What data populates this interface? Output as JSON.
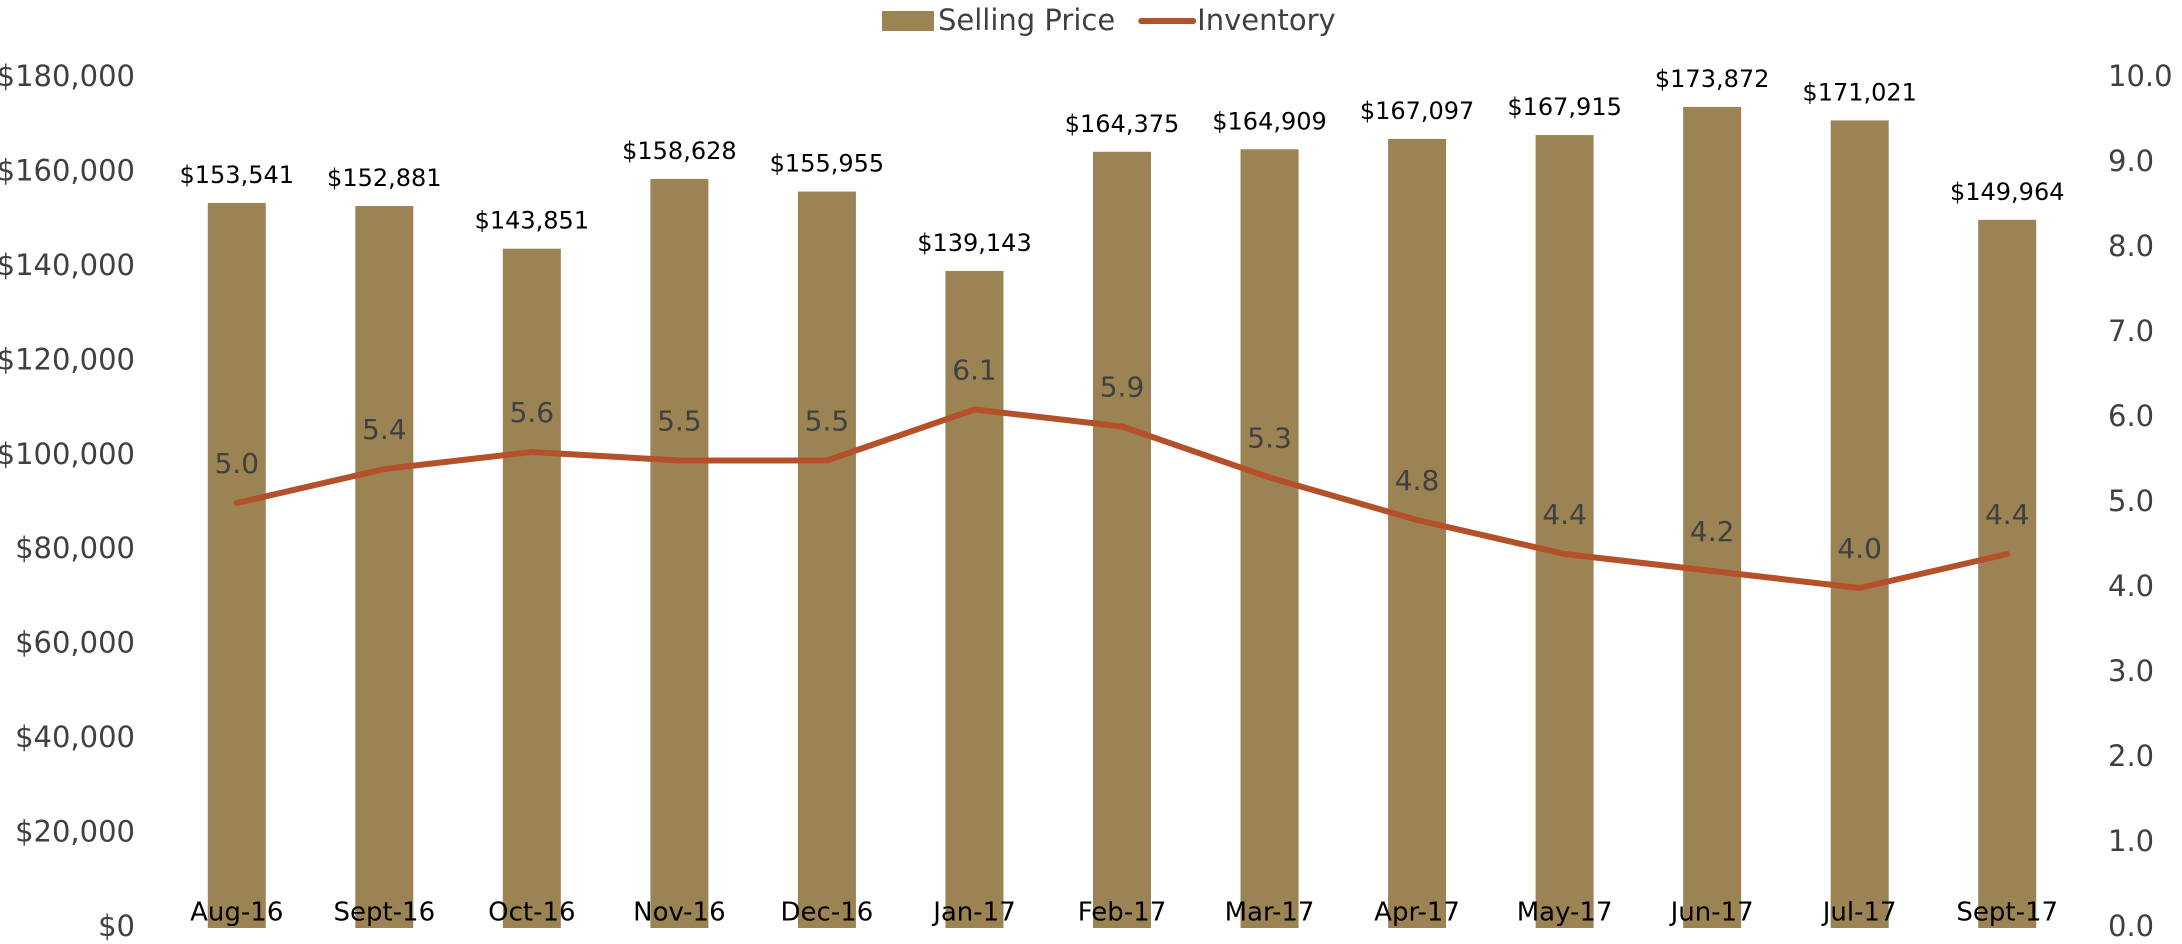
{
  "chart_data": {
    "type": "bar+line",
    "categories": [
      "Aug-16",
      "Sept-16",
      "Oct-16",
      "Nov-16",
      "Dec-16",
      "Jan-17",
      "Feb-17",
      "Mar-17",
      "Apr-17",
      "May-17",
      "Jun-17",
      "Jul-17",
      "Sept-17"
    ],
    "series": [
      {
        "name": "Selling Price",
        "type": "bar",
        "color": "#9c8354",
        "values": [
          153541,
          152881,
          143851,
          158628,
          155955,
          139143,
          164375,
          164909,
          167097,
          167915,
          173872,
          171021,
          149964
        ],
        "value_labels": [
          "$153,541",
          "$152,881",
          "$143,851",
          "$158,628",
          "$155,955",
          "$139,143",
          "$164,375",
          "$164,909",
          "$167,097",
          "$167,915",
          "$173,872",
          "$171,021",
          "$149,964"
        ]
      },
      {
        "name": "Inventory",
        "type": "line",
        "axis": "y2",
        "color": "#b5512a",
        "values": [
          5.0,
          5.4,
          5.6,
          5.5,
          5.5,
          6.1,
          5.9,
          5.3,
          4.8,
          4.4,
          4.2,
          4.0,
          4.4
        ],
        "value_labels": [
          "5.0",
          "5.4",
          "5.6",
          "5.5",
          "5.5",
          "6.1",
          "5.9",
          "5.3",
          "4.8",
          "4.4",
          "4.2",
          "4.0",
          "4.4"
        ]
      }
    ],
    "ylim": [
      0,
      180000
    ],
    "yticks": [
      {
        "value": 0,
        "label": "$0"
      },
      {
        "value": 20000,
        "label": "$20,000"
      },
      {
        "value": 40000,
        "label": "$40,000"
      },
      {
        "value": 60000,
        "label": "$60,000"
      },
      {
        "value": 80000,
        "label": "$80,000"
      },
      {
        "value": 100000,
        "label": "$100,000"
      },
      {
        "value": 120000,
        "label": "$120,000"
      },
      {
        "value": 140000,
        "label": "$140,000"
      },
      {
        "value": 160000,
        "label": "$160,000"
      },
      {
        "value": 180000,
        "label": "$180,000"
      }
    ],
    "y2lim": [
      0,
      10
    ],
    "y2ticks": [
      {
        "value": 0,
        "label": "0.0"
      },
      {
        "value": 1,
        "label": "1.0"
      },
      {
        "value": 2,
        "label": "2.0"
      },
      {
        "value": 3,
        "label": "3.0"
      },
      {
        "value": 4,
        "label": "4.0"
      },
      {
        "value": 5,
        "label": "5.0"
      },
      {
        "value": 6,
        "label": "6.0"
      },
      {
        "value": 7,
        "label": "7.0"
      },
      {
        "value": 8,
        "label": "8.0"
      },
      {
        "value": 9,
        "label": "9.0"
      },
      {
        "value": 10,
        "label": "10.0"
      }
    ],
    "legend": "top"
  }
}
